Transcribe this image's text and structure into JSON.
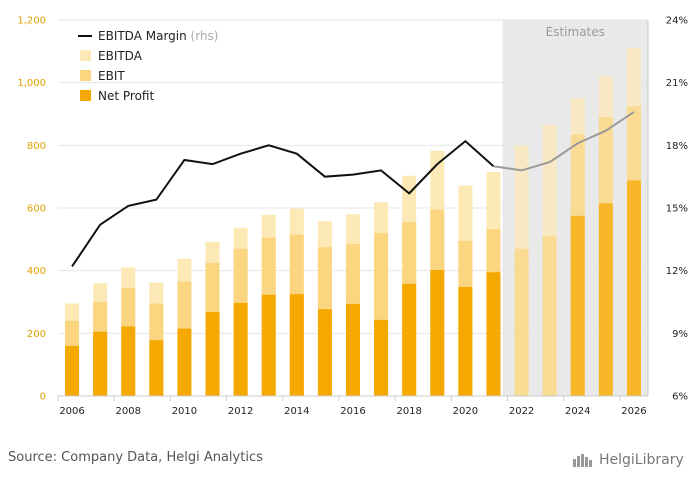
{
  "chart_data": {
    "type": "bar",
    "categories": [
      "2006",
      "2007",
      "2008",
      "2009",
      "2010",
      "2011",
      "2012",
      "2013",
      "2014",
      "2015",
      "2016",
      "2017",
      "2018",
      "2019",
      "2020",
      "2021",
      "2022",
      "2023",
      "2024",
      "2025",
      "2026"
    ],
    "series": [
      {
        "name": "EBITDA",
        "type": "bar",
        "axis": "left",
        "values": [
          295,
          360,
          410,
          362,
          438,
          492,
          537,
          578,
          598,
          558,
          580,
          618,
          703,
          783,
          672,
          715,
          800,
          865,
          950,
          1020,
          1110
        ]
      },
      {
        "name": "EBIT",
        "type": "bar",
        "axis": "left",
        "values": [
          240,
          300,
          345,
          295,
          365,
          425,
          470,
          505,
          515,
          475,
          485,
          520,
          555,
          595,
          495,
          532,
          470,
          510,
          835,
          890,
          925
        ]
      },
      {
        "name": "Net Profit",
        "type": "bar",
        "axis": "left",
        "values": [
          160,
          205,
          222,
          178,
          215,
          268,
          297,
          323,
          325,
          277,
          294,
          243,
          358,
          402,
          348,
          395,
          0,
          0,
          575,
          615,
          688
        ]
      },
      {
        "name": "EBITDA Margin",
        "legend_suffix": "(rhs)",
        "type": "line",
        "axis": "right",
        "unit": "%",
        "values": [
          12.2,
          14.2,
          15.1,
          15.4,
          17.3,
          17.1,
          17.6,
          18.0,
          17.6,
          16.5,
          16.6,
          16.8,
          15.7,
          17.1,
          18.2,
          17.0,
          16.8,
          17.2,
          18.1,
          18.7,
          19.6
        ]
      }
    ],
    "estimate_start": "2022",
    "estimate_label": "Estimates",
    "ylim": [
      0,
      1200
    ],
    "yticks": [
      "0",
      "200",
      "400",
      "600",
      "800",
      "1,000",
      "1,200"
    ],
    "y2lim": [
      6,
      24
    ],
    "y2ticks": [
      "6%",
      "9%",
      "12%",
      "15%",
      "18%",
      "21%",
      "24%"
    ],
    "xtick_labels": [
      "2006",
      "2008",
      "2010",
      "2012",
      "2014",
      "2016",
      "2018",
      "2020",
      "2022",
      "2024",
      "2026"
    ],
    "grid": true,
    "legend_position": "top-left",
    "colors": {
      "EBITDA": "#fde9b6",
      "EBIT": "#fbd57f",
      "Net Profit": "#f5a900",
      "EBITDA Margin": "#111111",
      "estimate_line": "#999999",
      "estimate_band": "#e9e9e9",
      "left_axis": "#e0a000",
      "right_axis": "#222222"
    }
  },
  "footer": {
    "source": "Source: Company Data, Helgi Analytics",
    "brand": "HelgiLibrary"
  },
  "icons": {
    "brand": "helgi-library-logo-icon"
  }
}
